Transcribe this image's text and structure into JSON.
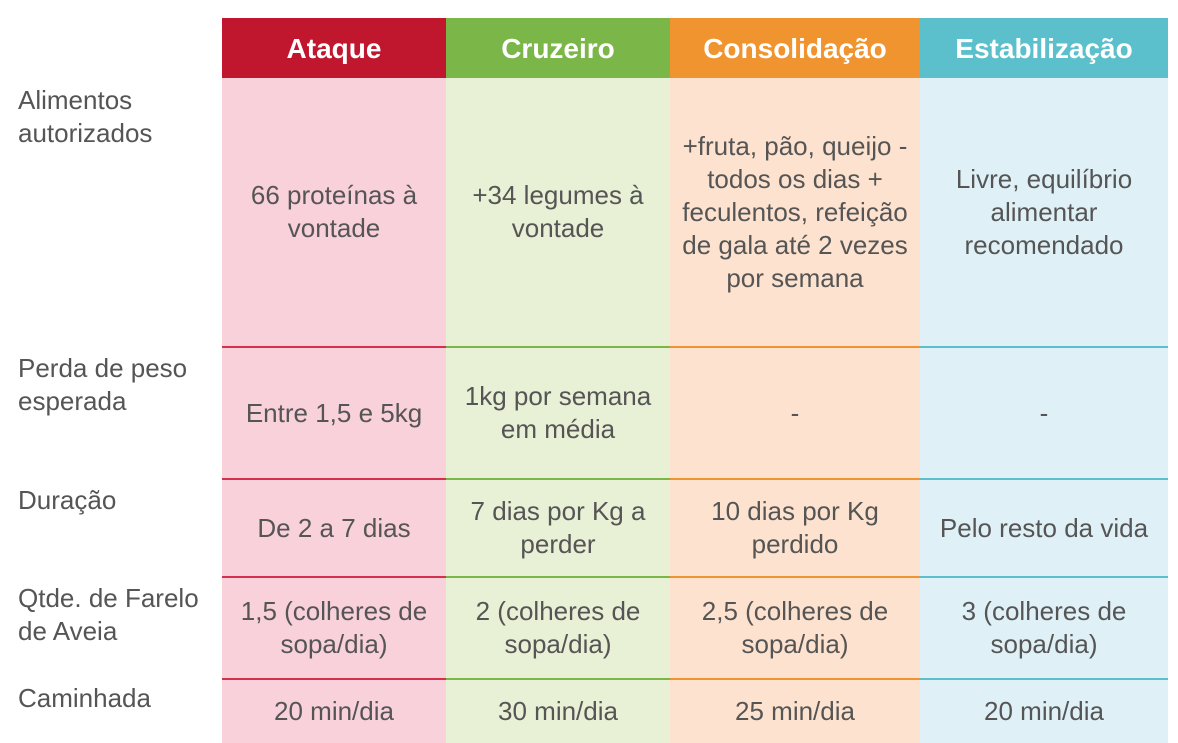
{
  "header": {
    "col1": "Ataque",
    "col2": "Cruzeiro",
    "col3": "Consolidação",
    "col4": "Estabilização"
  },
  "rows": [
    {
      "label": "Alimentos autorizados",
      "values": [
        "66 proteínas à vontade",
        "+34 legumes à vontade",
        "+fruta, pão, queijo - todos os dias + feculentos, refeição de gala até 2 vezes por semana",
        "Livre, equilíbrio alimentar recomendado"
      ]
    },
    {
      "label": "Perda de peso esperada",
      "values": [
        "Entre 1,5 e 5kg",
        "1kg por semana em média",
        "-",
        "-"
      ]
    },
    {
      "label": "Duração",
      "values": [
        "De 2 a 7 dias",
        "7 dias por Kg a perder",
        "10 dias por Kg perdido",
        "Pelo resto da vida"
      ]
    },
    {
      "label": "Qtde. de Farelo de Aveia",
      "values": [
        "1,5 (colheres de sopa/dia)",
        "2 (colheres de sopa/dia)",
        "2,5 (colheres de sopa/dia)",
        "3 (colheres de sopa/dia)"
      ]
    },
    {
      "label": "Caminhada",
      "values": [
        "20 min/dia",
        "30 min/dia",
        "25 min/dia",
        "20 min/dia"
      ]
    }
  ]
}
